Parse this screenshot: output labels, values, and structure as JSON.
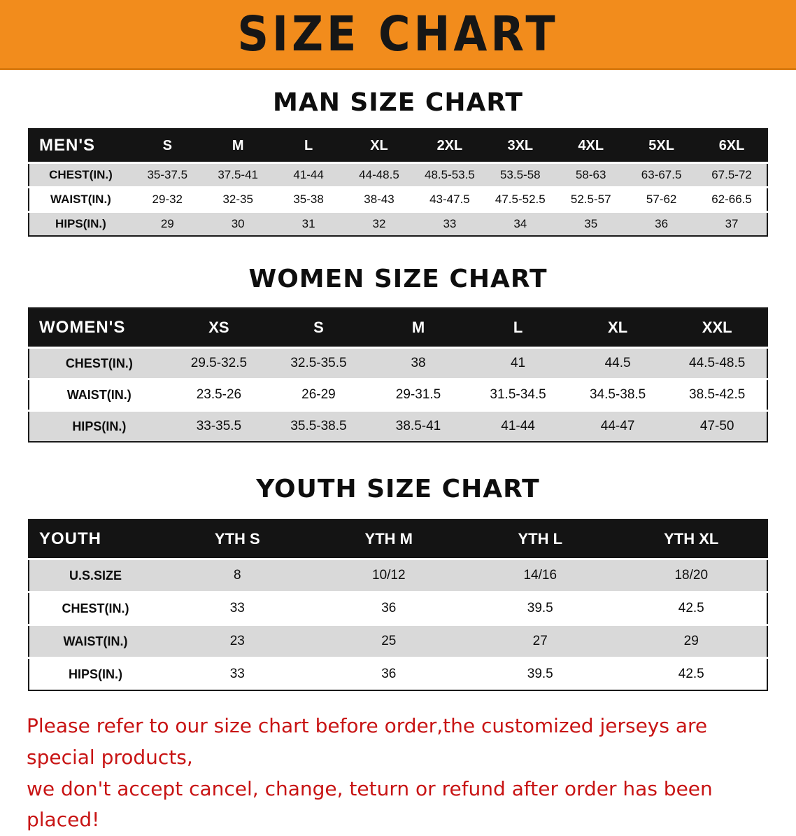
{
  "banner": {
    "title": "SIZE CHART"
  },
  "colors": {
    "banner_bg": "#F28C1C",
    "table_header_bg": "#141414",
    "table_header_text": "#FFFFFF",
    "row_shade": "#D9D9D9",
    "footer_text": "#C81414"
  },
  "chart_data": [
    {
      "type": "table",
      "title": "MAN SIZE CHART",
      "columns": [
        "MEN'S",
        "S",
        "M",
        "L",
        "XL",
        "2XL",
        "3XL",
        "4XL",
        "5XL",
        "6XL"
      ],
      "rows": [
        [
          "CHEST(IN.)",
          "35-37.5",
          "37.5-41",
          "41-44",
          "44-48.5",
          "48.5-53.5",
          "53.5-58",
          "58-63",
          "63-67.5",
          "67.5-72"
        ],
        [
          "WAIST(IN.)",
          "29-32",
          "32-35",
          "35-38",
          "38-43",
          "43-47.5",
          "47.5-52.5",
          "52.5-57",
          "57-62",
          "62-66.5"
        ],
        [
          "HIPS(IN.)",
          "29",
          "30",
          "31",
          "32",
          "33",
          "34",
          "35",
          "36",
          "37"
        ]
      ]
    },
    {
      "type": "table",
      "title": "WOMEN SIZE CHART",
      "columns": [
        "WOMEN'S",
        "XS",
        "S",
        "M",
        "L",
        "XL",
        "XXL"
      ],
      "rows": [
        [
          "CHEST(IN.)",
          "29.5-32.5",
          "32.5-35.5",
          "38",
          "41",
          "44.5",
          "44.5-48.5"
        ],
        [
          "WAIST(IN.)",
          "23.5-26",
          "26-29",
          "29-31.5",
          "31.5-34.5",
          "34.5-38.5",
          "38.5-42.5"
        ],
        [
          "HIPS(IN.)",
          "33-35.5",
          "35.5-38.5",
          "38.5-41",
          "41-44",
          "44-47",
          "47-50"
        ]
      ]
    },
    {
      "type": "table",
      "title": "YOUTH SIZE CHART",
      "columns": [
        "YOUTH",
        "YTH S",
        "YTH M",
        "YTH L",
        "YTH XL"
      ],
      "rows": [
        [
          "U.S.SIZE",
          "8",
          "10/12",
          "14/16",
          "18/20"
        ],
        [
          "CHEST(IN.)",
          "33",
          "36",
          "39.5",
          "42.5"
        ],
        [
          "WAIST(IN.)",
          "23",
          "25",
          "27",
          "29"
        ],
        [
          "HIPS(IN.)",
          "33",
          "36",
          "39.5",
          "42.5"
        ]
      ]
    }
  ],
  "footer": {
    "line1": "Please refer to our size chart before order,the customized jerseys are special products,",
    "line2": "we don't accept cancel, change, teturn or refund after order has been placed!"
  }
}
